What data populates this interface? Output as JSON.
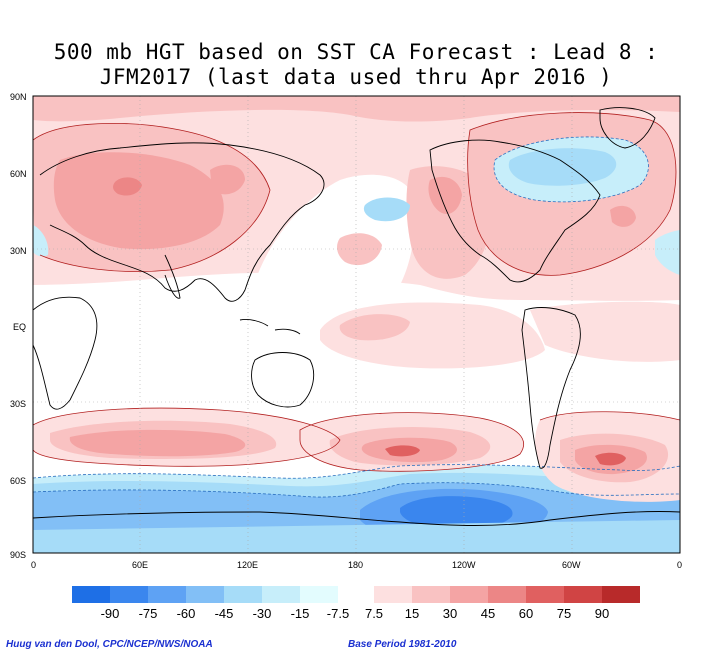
{
  "title": {
    "line1": "500 mb HGT based on SST CA Forecast : Lead 8 :",
    "line2": "JFM2017 (last data used thru Apr 2016 )"
  },
  "map": {
    "lat_labels": [
      "90N",
      "60N",
      "30N",
      "EQ",
      "30S",
      "60S",
      "90S"
    ],
    "lon_labels": [
      "0",
      "60E",
      "120E",
      "180",
      "120W",
      "60W",
      "0"
    ]
  },
  "colorbar": {
    "labels": [
      "-90",
      "-75",
      "-60",
      "-45",
      "-30",
      "-15",
      "-7.5",
      "7.5",
      "15",
      "30",
      "45",
      "60",
      "75",
      "90"
    ],
    "negative_colors": [
      "#1e6fe6",
      "#3a86ee",
      "#5ea2f4",
      "#82bff6",
      "#a6dcf8",
      "#c7eefa",
      "#e3fcfe"
    ],
    "positive_colors": [
      "#fde0e0",
      "#f9c2c2",
      "#f4a4a4",
      "#ec8686",
      "#e06060",
      "#d04444",
      "#b82a2a"
    ]
  },
  "footer": {
    "left": "Huug van den Dool, CPC/NCEP/NWS/NOAA",
    "right": "Base Period 1981-2010"
  }
}
